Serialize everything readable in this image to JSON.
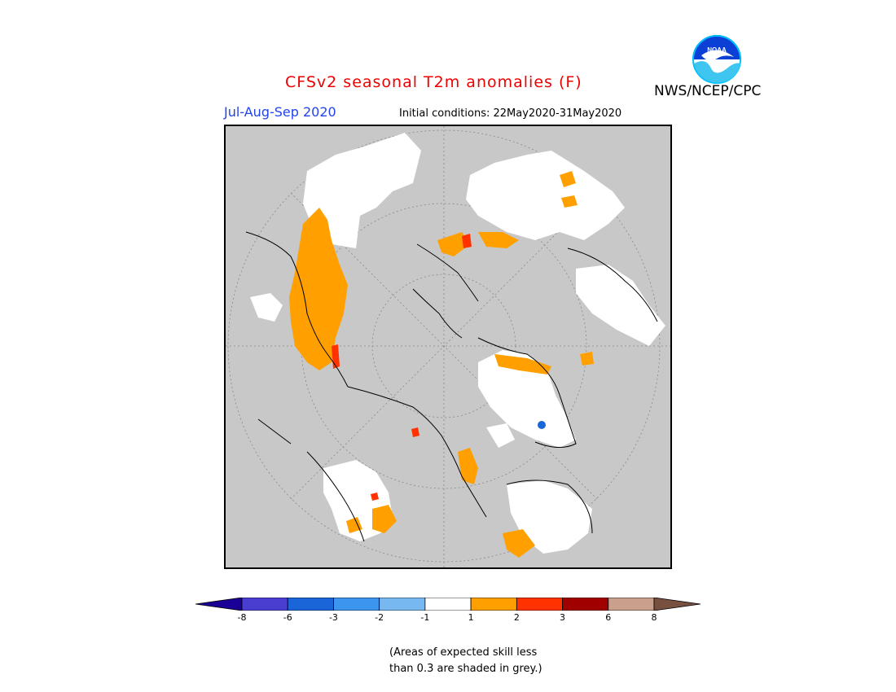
{
  "title": "CFSv2 seasonal T2m anomalies (F)",
  "period": "Jul-Aug-Sep 2020",
  "initial_conditions": "Initial conditions: 22May2020-31May2020",
  "agency": "NWS/NCEP/CPC",
  "logo_text": "NOAA",
  "colors": {
    "title": "#ee0000",
    "period": "#2244ee",
    "skill_grey": "#c8c8c8",
    "neutral": "#ffffff"
  },
  "legend": {
    "bins": [
      {
        "lower": "<-8",
        "color": "#1a0096"
      },
      {
        "lower": "-8",
        "color": "#4a3ed0"
      },
      {
        "lower": "-6",
        "color": "#1a66d8"
      },
      {
        "lower": "-3",
        "color": "#3c96f0"
      },
      {
        "lower": "-2",
        "color": "#78b8f0"
      },
      {
        "lower": "-1",
        "color": "#ffffff"
      },
      {
        "lower": "1",
        "color": "#ffa000"
      },
      {
        "lower": "2",
        "color": "#ff3200"
      },
      {
        "lower": "3",
        "color": "#a00000"
      },
      {
        "lower": "6",
        "color": "#c8a08c"
      },
      {
        "lower": ">8",
        "color": "#785040"
      }
    ],
    "tick_labels": [
      "-8",
      "-6",
      "-3",
      "-2",
      "-1",
      "1",
      "2",
      "3",
      "6",
      "8"
    ]
  },
  "note": "(Areas of expected skill less\nthan 0.3 are shaded in grey.)"
}
